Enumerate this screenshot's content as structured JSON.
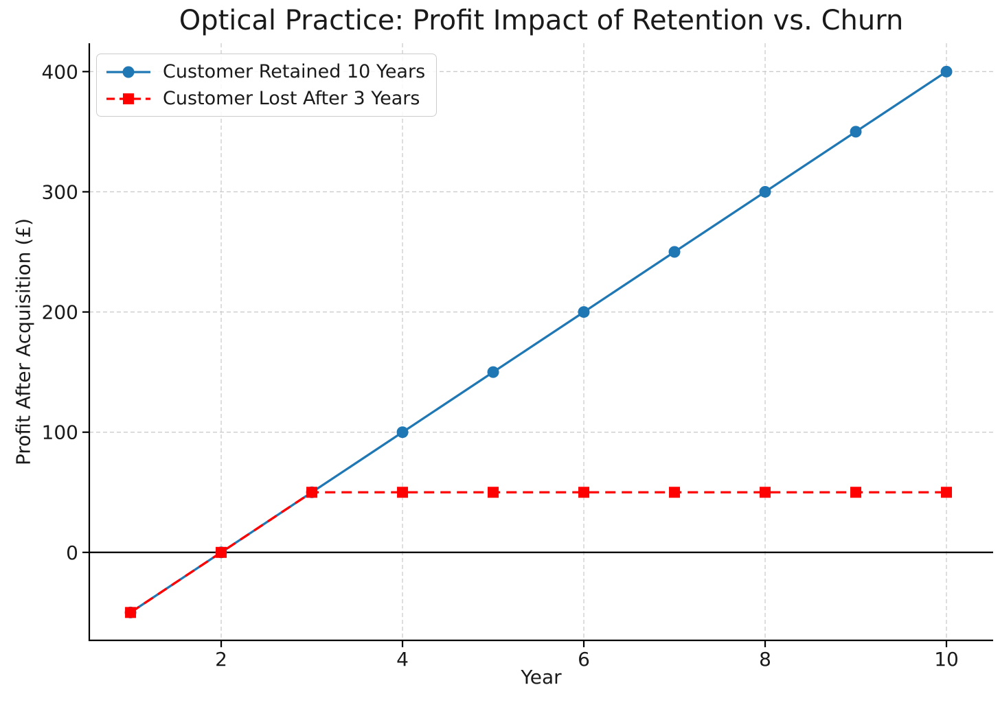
{
  "chart_data": {
    "type": "line",
    "title": "Optical Practice: Profit Impact of Retention vs. Churn",
    "xlabel": "Year",
    "ylabel": "Profit After Acquisition (£)",
    "x": [
      1,
      2,
      3,
      4,
      5,
      6,
      7,
      8,
      9,
      10
    ],
    "series": [
      {
        "name": "Customer Retained 10 Years",
        "values": [
          -50,
          0,
          50,
          100,
          150,
          200,
          250,
          300,
          350,
          400
        ],
        "color": "#1f77b4",
        "marker": "circle",
        "line_style": "solid"
      },
      {
        "name": "Customer Lost After 3 Years",
        "values": [
          -50,
          0,
          50,
          50,
          50,
          50,
          50,
          50,
          50,
          50
        ],
        "color": "#ff0000",
        "marker": "square",
        "line_style": "dashed"
      }
    ],
    "xticks": [
      "2",
      "4",
      "6",
      "8",
      "10"
    ],
    "xtick_values": [
      2,
      4,
      6,
      8,
      10
    ],
    "yticks": [
      "0",
      "100",
      "200",
      "300",
      "400"
    ],
    "ytick_values": [
      0,
      100,
      200,
      300,
      400
    ],
    "xlim": [
      0.545,
      10.515
    ],
    "ylim": [
      -73.2,
      423.6
    ],
    "grid": true,
    "grid_color": "#cccccc",
    "zero_line": true,
    "zero_line_color": "#000000",
    "axis_color": "#000000",
    "text_color": "#1a1a1a",
    "background": "#ffffff",
    "legend_position": "upper-left"
  }
}
